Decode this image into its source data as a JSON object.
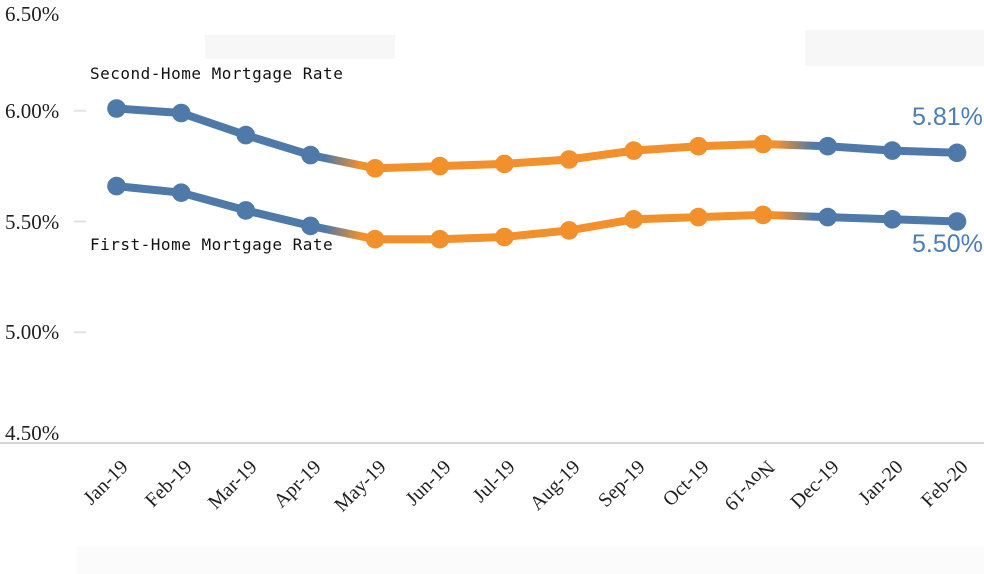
{
  "chart_data": {
    "type": "line",
    "title": "",
    "categories": [
      "Jan-19",
      "Feb-19",
      "Mar-19",
      "Apr-19",
      "May-19",
      "Jun-19",
      "Jul-19",
      "Aug-19",
      "Sep-19",
      "Oct-19",
      "Nov-19",
      "Dec-19",
      "Jan-20",
      "Feb-20"
    ],
    "series": [
      {
        "name": "Second-Home Mortgage Rate",
        "values": [
          6.01,
          5.99,
          5.89,
          5.8,
          5.74,
          5.75,
          5.76,
          5.78,
          5.82,
          5.84,
          5.85,
          5.84,
          5.82,
          5.81
        ],
        "end_label": "5.81%"
      },
      {
        "name": "First-Home Mortgage Rate",
        "values": [
          5.66,
          5.63,
          5.55,
          5.48,
          5.42,
          5.42,
          5.43,
          5.46,
          5.51,
          5.52,
          5.53,
          5.52,
          5.51,
          5.5
        ],
        "end_label": "5.50%"
      }
    ],
    "y_tick_labels": [
      "6.50%",
      "6.00%",
      "5.50%",
      "5.00%",
      "4.50%"
    ],
    "y_tick_values": [
      6.5,
      6.0,
      5.5,
      5.0,
      4.5
    ],
    "ylim": [
      4.5,
      6.5
    ],
    "grid": false,
    "legend_position": "inline-annotations",
    "orange_span": {
      "from": "May-19",
      "to": "Nov-19"
    },
    "flipped_label": "Nov-19",
    "colors": {
      "blue": "#4e79a8",
      "orange": "#f2902c",
      "end_label": "#4b7db8",
      "axis_text": "#1f1f1f",
      "axis_line": "#c6c6c6",
      "tick": "#e2e2e2"
    }
  }
}
